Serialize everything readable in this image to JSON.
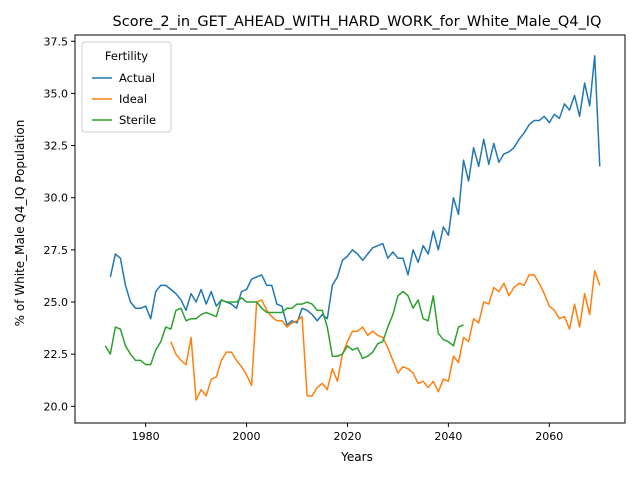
{
  "chart_data": {
    "type": "line",
    "title": "Score_2_in_GET_AHEAD_WITH_HARD_WORK_for_White_Male_Q4_IQ",
    "xlabel": "Years",
    "ylabel": "% of White_Male Q4_IQ Population",
    "xlim": [
      1966,
      2075
    ],
    "ylim": [
      19.2,
      37.8
    ],
    "xticks": [
      1980,
      2000,
      2020,
      2040,
      2060
    ],
    "yticks": [
      20.0,
      22.5,
      25.0,
      27.5,
      30.0,
      32.5,
      35.0,
      37.5
    ],
    "xtick_labels": [
      "1980",
      "2000",
      "2020",
      "2040",
      "2060"
    ],
    "ytick_labels": [
      "20.0",
      "22.5",
      "25.0",
      "27.5",
      "30.0",
      "32.5",
      "35.0",
      "37.5"
    ],
    "grid": false,
    "legend": {
      "title": "Fertility",
      "position": "top-left"
    },
    "series": [
      {
        "name": "Actual",
        "color": "#1f77b4",
        "points": [
          [
            1973,
            26.2
          ],
          [
            1974,
            27.3
          ],
          [
            1975,
            27.1
          ],
          [
            1976,
            25.8
          ],
          [
            1977,
            25.0
          ],
          [
            1978,
            24.7
          ],
          [
            1979,
            24.7
          ],
          [
            1980,
            24.8
          ],
          [
            1981,
            24.2
          ],
          [
            1982,
            25.5
          ],
          [
            1983,
            25.8
          ],
          [
            1984,
            25.8
          ],
          [
            1985,
            25.6
          ],
          [
            1986,
            25.4
          ],
          [
            1987,
            25.1
          ],
          [
            1988,
            24.6
          ],
          [
            1989,
            25.4
          ],
          [
            1990,
            25.0
          ],
          [
            1991,
            25.6
          ],
          [
            1992,
            24.9
          ],
          [
            1993,
            25.5
          ],
          [
            1994,
            24.8
          ],
          [
            1995,
            25.1
          ],
          [
            1996,
            25.0
          ],
          [
            1997,
            24.9
          ],
          [
            1998,
            24.7
          ],
          [
            1999,
            25.5
          ],
          [
            2000,
            25.6
          ],
          [
            2001,
            26.1
          ],
          [
            2002,
            26.2
          ],
          [
            2003,
            26.3
          ],
          [
            2004,
            25.8
          ],
          [
            2005,
            25.8
          ],
          [
            2006,
            24.9
          ],
          [
            2007,
            24.8
          ],
          [
            2008,
            23.9
          ],
          [
            2009,
            24.1
          ],
          [
            2010,
            24.0
          ],
          [
            2011,
            24.7
          ],
          [
            2012,
            24.6
          ],
          [
            2013,
            24.4
          ],
          [
            2014,
            24.1
          ],
          [
            2015,
            24.4
          ],
          [
            2016,
            24.2
          ],
          [
            2017,
            25.8
          ],
          [
            2018,
            26.2
          ],
          [
            2019,
            27.0
          ],
          [
            2020,
            27.2
          ],
          [
            2021,
            27.5
          ],
          [
            2022,
            27.3
          ],
          [
            2023,
            27.0
          ],
          [
            2024,
            27.3
          ],
          [
            2025,
            27.6
          ],
          [
            2026,
            27.7
          ],
          [
            2027,
            27.8
          ],
          [
            2028,
            27.1
          ],
          [
            2029,
            27.4
          ],
          [
            2030,
            27.1
          ],
          [
            2031,
            27.1
          ],
          [
            2032,
            26.3
          ],
          [
            2033,
            27.5
          ],
          [
            2034,
            26.9
          ],
          [
            2035,
            27.7
          ],
          [
            2036,
            27.3
          ],
          [
            2037,
            28.4
          ],
          [
            2038,
            27.5
          ],
          [
            2039,
            28.6
          ],
          [
            2040,
            28.2
          ],
          [
            2041,
            30.0
          ],
          [
            2042,
            29.2
          ],
          [
            2043,
            31.8
          ],
          [
            2044,
            30.8
          ],
          [
            2045,
            32.4
          ],
          [
            2046,
            31.5
          ],
          [
            2047,
            32.8
          ],
          [
            2048,
            31.6
          ],
          [
            2049,
            32.6
          ],
          [
            2050,
            31.7
          ],
          [
            2051,
            32.1
          ],
          [
            2052,
            32.2
          ],
          [
            2053,
            32.4
          ],
          [
            2054,
            32.8
          ],
          [
            2055,
            33.1
          ],
          [
            2056,
            33.5
          ],
          [
            2057,
            33.7
          ],
          [
            2058,
            33.7
          ],
          [
            2059,
            33.9
          ],
          [
            2060,
            33.6
          ],
          [
            2061,
            34.0
          ],
          [
            2062,
            33.8
          ],
          [
            2063,
            34.5
          ],
          [
            2064,
            34.2
          ],
          [
            2065,
            34.9
          ],
          [
            2066,
            33.9
          ],
          [
            2067,
            35.5
          ],
          [
            2068,
            34.4
          ],
          [
            2069,
            36.8
          ],
          [
            2070,
            31.5
          ]
        ]
      },
      {
        "name": "Ideal",
        "color": "#ff7f0e",
        "points": [
          [
            1985,
            23.1
          ],
          [
            1986,
            22.5
          ],
          [
            1987,
            22.2
          ],
          [
            1988,
            22.0
          ],
          [
            1989,
            23.3
          ],
          [
            1990,
            20.3
          ],
          [
            1991,
            20.8
          ],
          [
            1992,
            20.5
          ],
          [
            1993,
            21.3
          ],
          [
            1994,
            21.4
          ],
          [
            1995,
            22.2
          ],
          [
            1996,
            22.6
          ],
          [
            1997,
            22.6
          ],
          [
            1998,
            22.2
          ],
          [
            1999,
            21.9
          ],
          [
            2000,
            21.5
          ],
          [
            2001,
            21.0
          ],
          [
            2002,
            25.0
          ],
          [
            2003,
            25.1
          ],
          [
            2004,
            24.6
          ],
          [
            2005,
            24.3
          ],
          [
            2006,
            24.1
          ],
          [
            2007,
            24.1
          ],
          [
            2008,
            23.8
          ],
          [
            2009,
            24.0
          ],
          [
            2010,
            24.1
          ],
          [
            2011,
            24.3
          ],
          [
            2012,
            20.5
          ],
          [
            2013,
            20.5
          ],
          [
            2014,
            20.9
          ],
          [
            2015,
            21.1
          ],
          [
            2016,
            20.8
          ],
          [
            2017,
            21.8
          ],
          [
            2018,
            21.2
          ],
          [
            2019,
            22.5
          ],
          [
            2020,
            23.1
          ],
          [
            2021,
            23.6
          ],
          [
            2022,
            23.6
          ],
          [
            2023,
            23.8
          ],
          [
            2024,
            23.4
          ],
          [
            2025,
            23.6
          ],
          [
            2026,
            23.4
          ],
          [
            2027,
            23.3
          ],
          [
            2028,
            22.8
          ],
          [
            2029,
            22.2
          ],
          [
            2030,
            21.6
          ],
          [
            2031,
            21.9
          ],
          [
            2032,
            21.8
          ],
          [
            2033,
            21.6
          ],
          [
            2034,
            21.1
          ],
          [
            2035,
            21.2
          ],
          [
            2036,
            20.9
          ],
          [
            2037,
            21.2
          ],
          [
            2038,
            20.7
          ],
          [
            2039,
            21.3
          ],
          [
            2040,
            21.2
          ],
          [
            2041,
            22.4
          ],
          [
            2042,
            22.1
          ],
          [
            2043,
            23.3
          ],
          [
            2044,
            23.1
          ],
          [
            2045,
            24.2
          ],
          [
            2046,
            24.0
          ],
          [
            2047,
            25.0
          ],
          [
            2048,
            24.9
          ],
          [
            2049,
            25.7
          ],
          [
            2050,
            25.5
          ],
          [
            2051,
            25.9
          ],
          [
            2052,
            25.3
          ],
          [
            2053,
            25.7
          ],
          [
            2054,
            25.9
          ],
          [
            2055,
            25.8
          ],
          [
            2056,
            26.3
          ],
          [
            2057,
            26.3
          ],
          [
            2058,
            25.9
          ],
          [
            2059,
            25.4
          ],
          [
            2060,
            24.8
          ],
          [
            2061,
            24.6
          ],
          [
            2062,
            24.2
          ],
          [
            2063,
            24.3
          ],
          [
            2064,
            23.7
          ],
          [
            2065,
            24.9
          ],
          [
            2066,
            23.8
          ],
          [
            2067,
            25.4
          ],
          [
            2068,
            24.4
          ],
          [
            2069,
            26.5
          ],
          [
            2070,
            25.8
          ]
        ]
      },
      {
        "name": "Sterile",
        "color": "#2ca02c",
        "points": [
          [
            1972,
            22.9
          ],
          [
            1973,
            22.5
          ],
          [
            1974,
            23.8
          ],
          [
            1975,
            23.7
          ],
          [
            1976,
            22.9
          ],
          [
            1977,
            22.5
          ],
          [
            1978,
            22.2
          ],
          [
            1979,
            22.2
          ],
          [
            1980,
            22.0
          ],
          [
            1981,
            22.0
          ],
          [
            1982,
            22.7
          ],
          [
            1983,
            23.1
          ],
          [
            1984,
            23.8
          ],
          [
            1985,
            23.7
          ],
          [
            1986,
            24.6
          ],
          [
            1987,
            24.7
          ],
          [
            1988,
            24.1
          ],
          [
            1989,
            24.2
          ],
          [
            1990,
            24.2
          ],
          [
            1991,
            24.4
          ],
          [
            1992,
            24.5
          ],
          [
            1993,
            24.4
          ],
          [
            1994,
            24.3
          ],
          [
            1995,
            25.1
          ],
          [
            1996,
            25.0
          ],
          [
            1997,
            25.0
          ],
          [
            1998,
            25.0
          ],
          [
            1999,
            25.2
          ],
          [
            2000,
            25.0
          ],
          [
            2001,
            25.0
          ],
          [
            2002,
            25.0
          ],
          [
            2003,
            24.7
          ],
          [
            2004,
            24.5
          ],
          [
            2005,
            24.5
          ],
          [
            2006,
            24.5
          ],
          [
            2007,
            24.5
          ],
          [
            2008,
            24.7
          ],
          [
            2009,
            24.7
          ],
          [
            2010,
            24.9
          ],
          [
            2011,
            24.9
          ],
          [
            2012,
            25.0
          ],
          [
            2013,
            24.9
          ],
          [
            2014,
            24.6
          ],
          [
            2015,
            24.6
          ],
          [
            2016,
            23.8
          ],
          [
            2017,
            22.4
          ],
          [
            2018,
            22.4
          ],
          [
            2019,
            22.5
          ],
          [
            2020,
            22.9
          ],
          [
            2021,
            22.7
          ],
          [
            2022,
            22.8
          ],
          [
            2023,
            22.3
          ],
          [
            2024,
            22.4
          ],
          [
            2025,
            22.6
          ],
          [
            2026,
            23.0
          ],
          [
            2027,
            23.1
          ],
          [
            2028,
            23.8
          ],
          [
            2029,
            24.4
          ],
          [
            2030,
            25.3
          ],
          [
            2031,
            25.5
          ],
          [
            2032,
            25.3
          ],
          [
            2033,
            24.7
          ],
          [
            2034,
            25.1
          ],
          [
            2035,
            24.2
          ],
          [
            2036,
            24.1
          ],
          [
            2037,
            25.3
          ],
          [
            2038,
            23.5
          ],
          [
            2039,
            23.2
          ],
          [
            2040,
            23.1
          ],
          [
            2041,
            22.9
          ],
          [
            2042,
            23.8
          ],
          [
            2043,
            23.9
          ]
        ]
      }
    ]
  }
}
